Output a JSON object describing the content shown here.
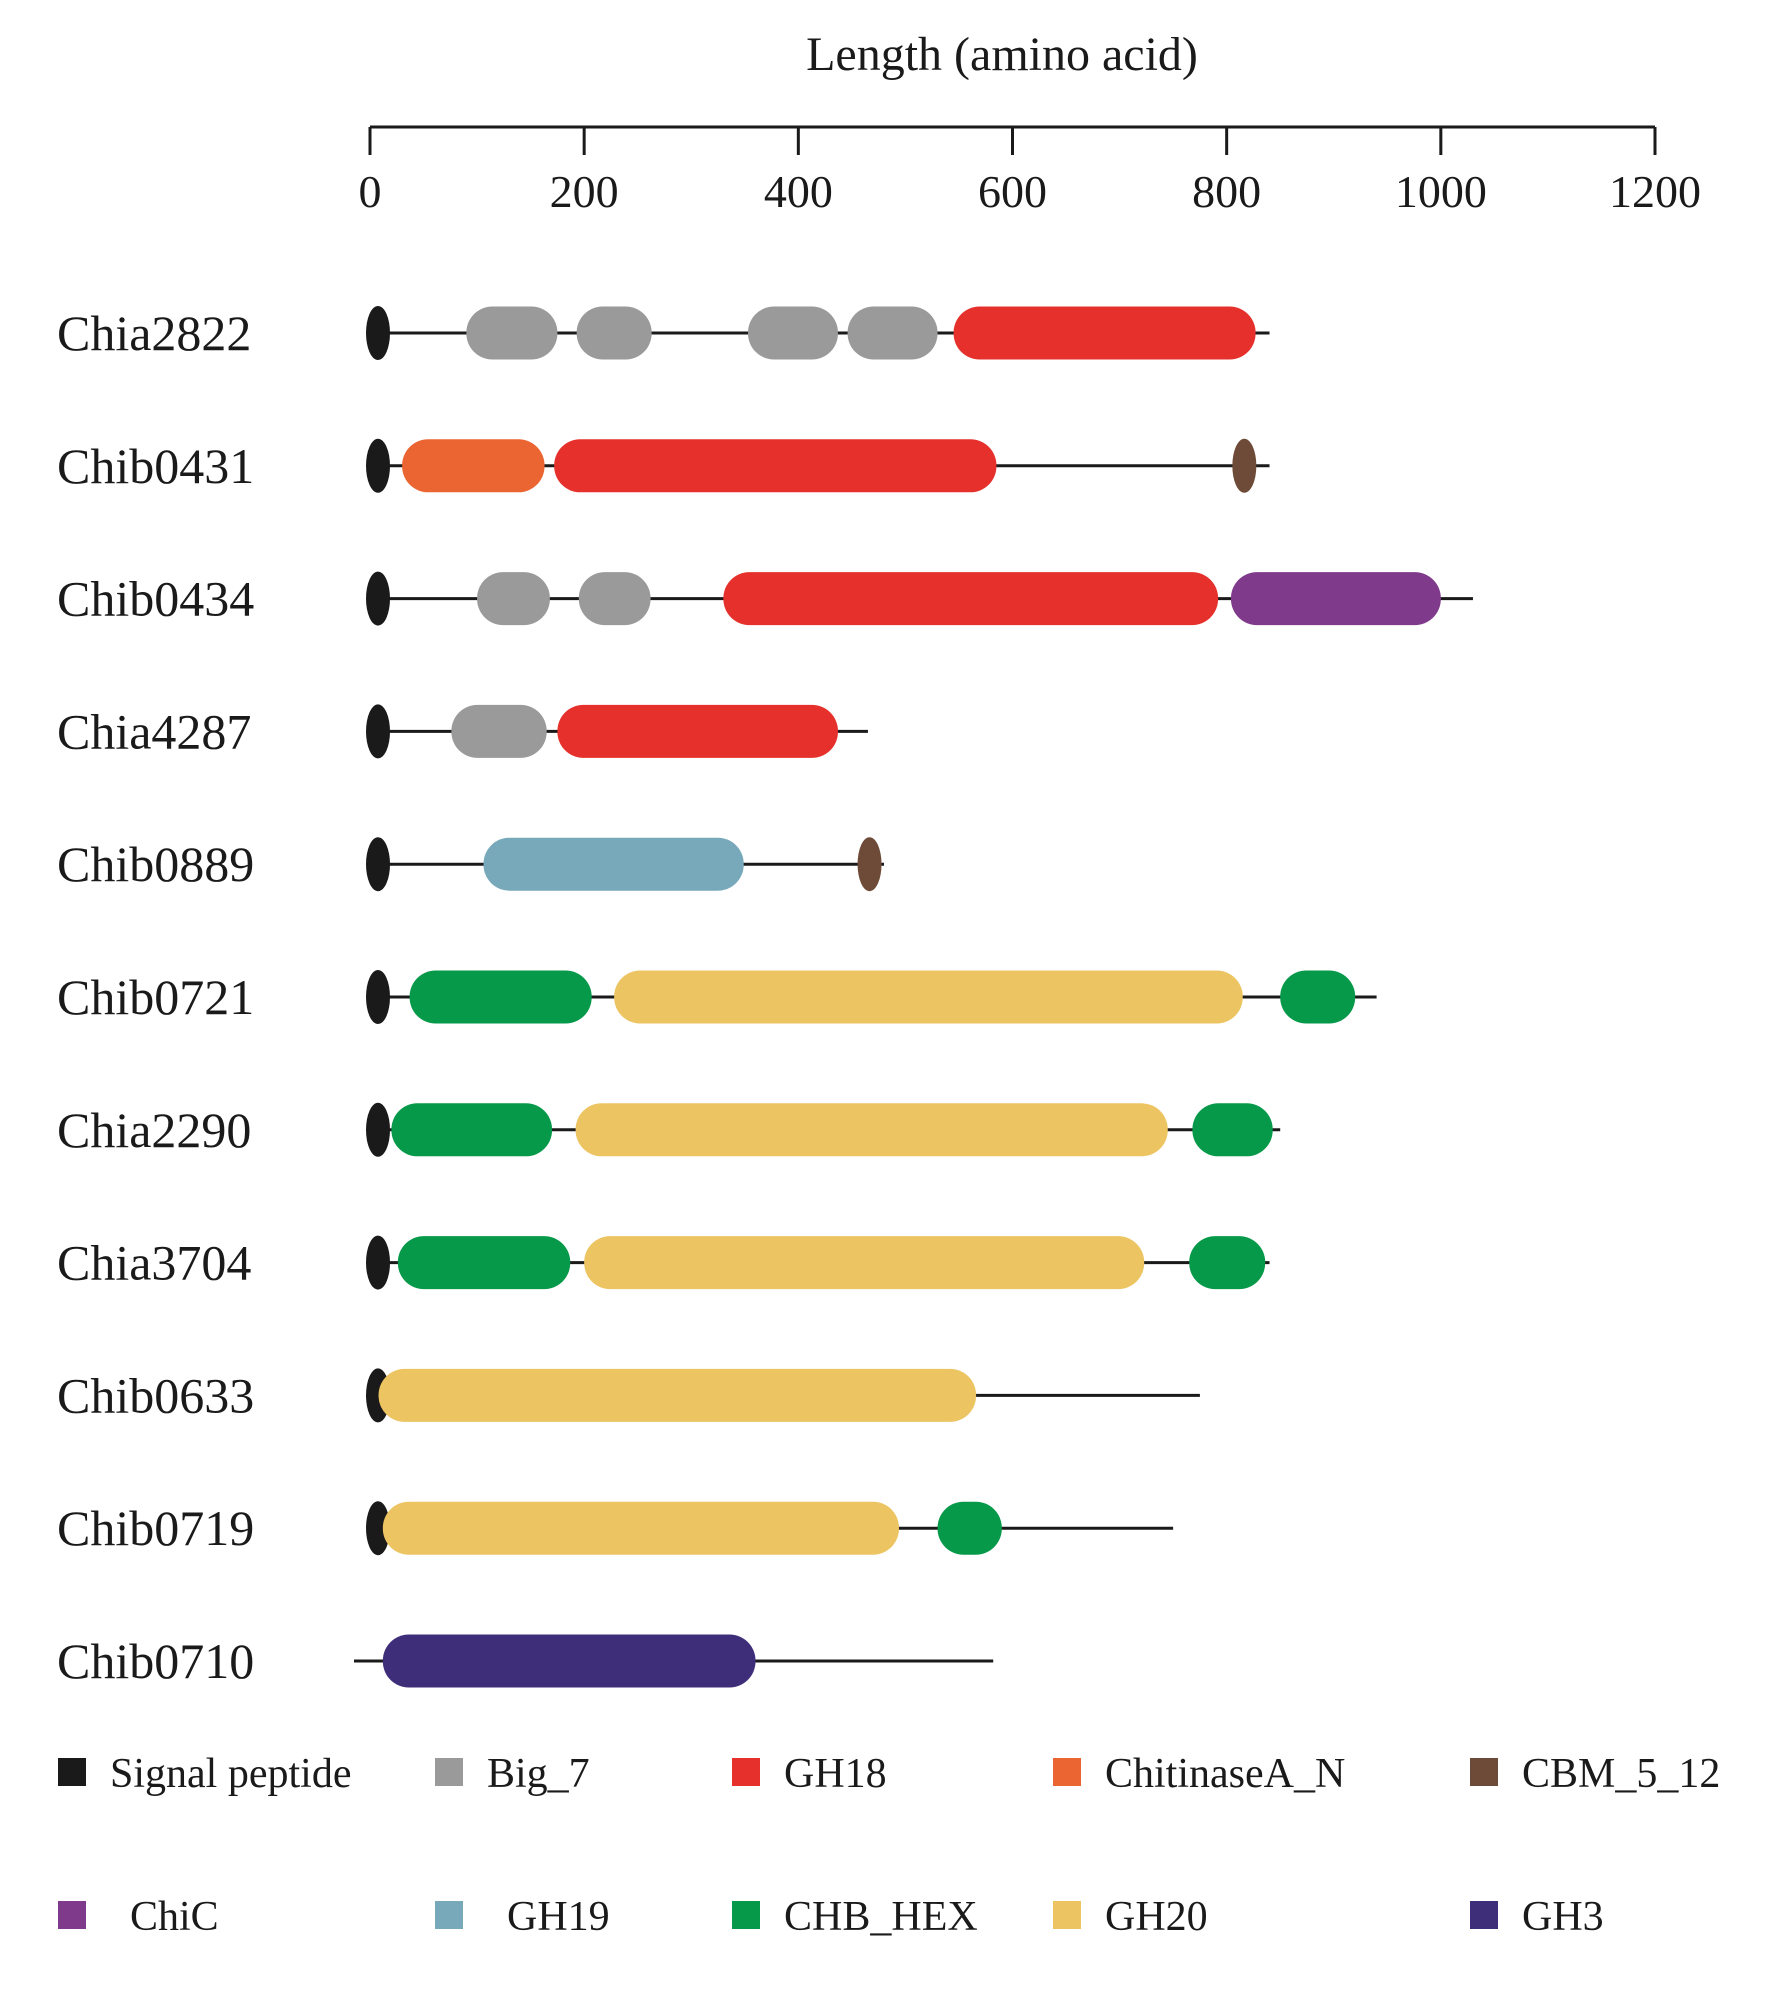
{
  "chart_data": {
    "type": "domain-architecture",
    "axis_title": "Length (amino acid)",
    "axis_range": [
      0,
      1200
    ],
    "ticks": [
      "0",
      "200",
      "400",
      "600",
      "800",
      "1000",
      "1200"
    ],
    "tick_values": [
      0,
      200,
      400,
      600,
      800,
      1000,
      1200
    ],
    "proteins": [
      {
        "name": "Chia2822",
        "length": 840,
        "domains": [
          {
            "type": "Signal peptide",
            "start": 0,
            "end": 10
          },
          {
            "type": "Big_7",
            "start": 90,
            "end": 175
          },
          {
            "type": "Big_7",
            "start": 193,
            "end": 263
          },
          {
            "type": "Big_7",
            "start": 353,
            "end": 437
          },
          {
            "type": "Big_7",
            "start": 446,
            "end": 530
          },
          {
            "type": "GH18",
            "start": 545,
            "end": 827
          }
        ]
      },
      {
        "name": "Chib0431",
        "length": 840,
        "domains": [
          {
            "type": "Signal peptide",
            "start": 0,
            "end": 10
          },
          {
            "type": "ChitinaseA_N",
            "start": 30,
            "end": 163
          },
          {
            "type": "GH18",
            "start": 172,
            "end": 585
          },
          {
            "type": "CBM_5_12",
            "start": 808,
            "end": 825
          }
        ]
      },
      {
        "name": "Chib0434",
        "length": 1030,
        "domains": [
          {
            "type": "Signal peptide",
            "start": 0,
            "end": 12
          },
          {
            "type": "Big_7",
            "start": 100,
            "end": 168
          },
          {
            "type": "Big_7",
            "start": 195,
            "end": 262
          },
          {
            "type": "GH18",
            "start": 330,
            "end": 792
          },
          {
            "type": "ChiC",
            "start": 804,
            "end": 1000
          }
        ]
      },
      {
        "name": "Chia4287",
        "length": 465,
        "domains": [
          {
            "type": "Signal peptide",
            "start": 0,
            "end": 10
          },
          {
            "type": "Big_7",
            "start": 76,
            "end": 165
          },
          {
            "type": "GH18",
            "start": 175,
            "end": 437
          }
        ]
      },
      {
        "name": "Chib0889",
        "length": 480,
        "domains": [
          {
            "type": "Signal peptide",
            "start": 0,
            "end": 10
          },
          {
            "type": "GH19",
            "start": 106,
            "end": 349
          },
          {
            "type": "CBM_5_12",
            "start": 456,
            "end": 477
          }
        ]
      },
      {
        "name": "Chib0721",
        "length": 940,
        "domains": [
          {
            "type": "Signal peptide",
            "start": 0,
            "end": 12
          },
          {
            "type": "CHB_HEX",
            "start": 37,
            "end": 207
          },
          {
            "type": "GH20",
            "start": 228,
            "end": 815
          },
          {
            "type": "CHB_HEX",
            "start": 850,
            "end": 920
          }
        ]
      },
      {
        "name": "Chia2290",
        "length": 850,
        "domains": [
          {
            "type": "Signal peptide",
            "start": 0,
            "end": 5
          },
          {
            "type": "CHB_HEX",
            "start": 20,
            "end": 170
          },
          {
            "type": "GH20",
            "start": 192,
            "end": 745
          },
          {
            "type": "CHB_HEX",
            "start": 768,
            "end": 843
          }
        ]
      },
      {
        "name": "Chia3704",
        "length": 840,
        "domains": [
          {
            "type": "Signal peptide",
            "start": 0,
            "end": 10
          },
          {
            "type": "CHB_HEX",
            "start": 26,
            "end": 187
          },
          {
            "type": "GH20",
            "start": 200,
            "end": 723
          },
          {
            "type": "CHB_HEX",
            "start": 765,
            "end": 836
          }
        ]
      },
      {
        "name": "Chib0633",
        "length": 775,
        "domains": [
          {
            "type": "Signal peptide",
            "start": 0,
            "end": 10
          },
          {
            "type": "GH20",
            "start": 8,
            "end": 566
          }
        ]
      },
      {
        "name": "Chib0719",
        "length": 750,
        "domains": [
          {
            "type": "Signal peptide",
            "start": 0,
            "end": 5
          },
          {
            "type": "GH20",
            "start": 12,
            "end": 494
          },
          {
            "type": "CHB_HEX",
            "start": 530,
            "end": 590
          }
        ]
      },
      {
        "name": "Chib0710",
        "length": 582,
        "domains": [
          {
            "type": "GH3",
            "start": 12,
            "end": 360
          }
        ]
      }
    ],
    "legend": [
      {
        "label": "Signal peptide",
        "color": "#1a1a1a"
      },
      {
        "label": "Big_7",
        "color": "#9a9a9a"
      },
      {
        "label": "GH18",
        "color": "#e5302b"
      },
      {
        "label": "ChitinaseA_N",
        "color": "#ea6532"
      },
      {
        "label": "CBM_5_12",
        "color": "#6e4b38"
      },
      {
        "label": "ChiC",
        "color": "#803a8b"
      },
      {
        "label": "GH19",
        "color": "#77a9bb"
      },
      {
        "label": "CHB_HEX",
        "color": "#06994a"
      },
      {
        "label": "GH20",
        "color": "#ecc462"
      },
      {
        "label": "GH3",
        "color": "#3e2d78"
      }
    ]
  }
}
